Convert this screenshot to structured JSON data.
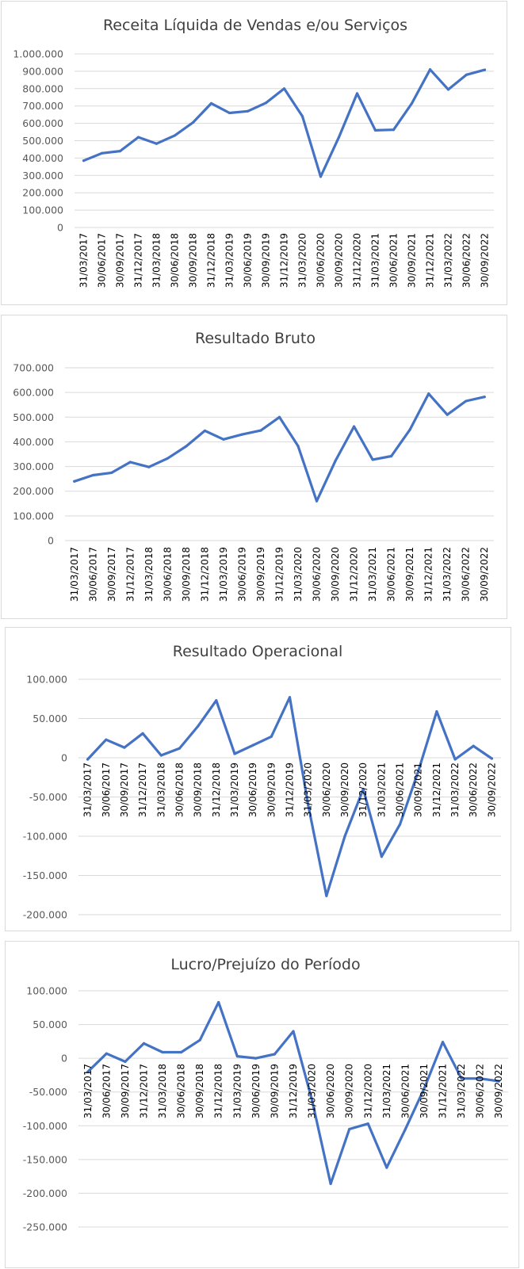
{
  "chart_data": [
    {
      "type": "line",
      "title": "Receita Líquida de Vendas e/ou Serviços",
      "categories": [
        "31/03/2017",
        "30/06/2017",
        "30/09/2017",
        "31/12/2017",
        "31/03/2018",
        "30/06/2018",
        "30/09/2018",
        "31/12/2018",
        "31/03/2019",
        "30/06/2019",
        "30/09/2019",
        "31/12/2019",
        "31/03/2020",
        "30/06/2020",
        "30/09/2020",
        "31/12/2020",
        "31/03/2021",
        "30/06/2021",
        "30/09/2021",
        "31/12/2021",
        "31/03/2022",
        "30/06/2022",
        "30/09/2022"
      ],
      "values": [
        385000,
        428000,
        440000,
        520000,
        483000,
        530000,
        605000,
        715000,
        660000,
        670000,
        718000,
        800000,
        640000,
        293000,
        520000,
        772000,
        560000,
        563000,
        715000,
        910000,
        795000,
        880000,
        908000
      ],
      "ylim": [
        0,
        1000000
      ],
      "yticks": [
        0,
        100000,
        200000,
        300000,
        400000,
        500000,
        600000,
        700000,
        800000,
        900000,
        1000000
      ],
      "ytick_labels": [
        "0",
        "100.000",
        "200.000",
        "300.000",
        "400.000",
        "500.000",
        "600.000",
        "700.000",
        "800.000",
        "900.000",
        "1.000.000"
      ],
      "grid": true,
      "color": "#4472C4"
    },
    {
      "type": "line",
      "title": "Resultado Bruto",
      "categories": [
        "31/03/2017",
        "30/06/2017",
        "30/09/2017",
        "31/12/2017",
        "31/03/2018",
        "30/06/2018",
        "30/09/2018",
        "31/12/2018",
        "31/03/2019",
        "30/06/2019",
        "30/09/2019",
        "31/12/2019",
        "31/03/2020",
        "30/06/2020",
        "30/09/2020",
        "31/12/2020",
        "31/03/2021",
        "30/06/2021",
        "30/09/2021",
        "31/12/2021",
        "31/03/2022",
        "30/06/2022",
        "30/09/2022"
      ],
      "values": [
        240000,
        265000,
        275000,
        318000,
        298000,
        333000,
        382000,
        445000,
        410000,
        430000,
        446000,
        500000,
        383000,
        160000,
        323000,
        462000,
        328000,
        342000,
        450000,
        595000,
        510000,
        565000,
        582000
      ],
      "ylim": [
        0,
        700000
      ],
      "yticks": [
        0,
        100000,
        200000,
        300000,
        400000,
        500000,
        600000,
        700000
      ],
      "ytick_labels": [
        "0",
        "100.000",
        "200.000",
        "300.000",
        "400.000",
        "500.000",
        "600.000",
        "700.000"
      ],
      "grid": true,
      "color": "#4472C4"
    },
    {
      "type": "line",
      "title": "Resultado Operacional",
      "categories": [
        "31/03/2017",
        "30/06/2017",
        "30/09/2017",
        "31/12/2017",
        "31/03/2018",
        "30/06/2018",
        "30/09/2018",
        "31/12/2018",
        "31/03/2019",
        "30/06/2019",
        "30/09/2019",
        "31/12/2019",
        "31/03/2020",
        "30/06/2020",
        "30/09/2020",
        "31/12/2020",
        "31/03/2021",
        "30/06/2021",
        "30/09/2021",
        "31/12/2021",
        "31/03/2022",
        "30/06/2022",
        "30/09/2022"
      ],
      "values": [
        -2000,
        23000,
        13000,
        31000,
        3000,
        12000,
        40000,
        73000,
        5000,
        16000,
        27000,
        77000,
        -60000,
        -176000,
        -100000,
        -40000,
        -126000,
        -85000,
        -17000,
        59000,
        -2000,
        15000,
        -1000
      ],
      "ylim": [
        -200000,
        100000
      ],
      "yticks": [
        -200000,
        -150000,
        -100000,
        -50000,
        0,
        50000,
        100000
      ],
      "ytick_labels": [
        "-200.000",
        "-150.000",
        "-100.000",
        "-50.000",
        "0",
        "50.000",
        "100.000"
      ],
      "grid": true,
      "color": "#4472C4"
    },
    {
      "type": "line",
      "title": "Lucro/Prejuízo do Período",
      "categories": [
        "31/03/2017",
        "30/06/2017",
        "30/09/2017",
        "31/12/2017",
        "31/03/2018",
        "30/06/2018",
        "30/09/2018",
        "31/12/2018",
        "31/03/2019",
        "30/06/2019",
        "30/09/2019",
        "31/12/2019",
        "31/03/2020",
        "30/06/2020",
        "30/09/2020",
        "31/12/2020",
        "31/03/2021",
        "30/06/2021",
        "30/09/2021",
        "31/12/2021",
        "31/03/2022",
        "30/06/2022",
        "30/09/2022"
      ],
      "values": [
        -20000,
        7000,
        -5000,
        22000,
        9000,
        9000,
        27000,
        83000,
        3000,
        0,
        6000,
        40000,
        -62000,
        -186000,
        -105000,
        -97000,
        -162000,
        -105000,
        -45000,
        24000,
        -30000,
        -30000,
        -34000
      ],
      "ylim": [
        -250000,
        100000
      ],
      "yticks": [
        -250000,
        -200000,
        -150000,
        -100000,
        -50000,
        0,
        50000,
        100000
      ],
      "ytick_labels": [
        "-250.000",
        "-200.000",
        "-150.000",
        "-100.000",
        "-50.000",
        "0",
        "50.000",
        "100.000"
      ],
      "grid": true,
      "color": "#4472C4"
    }
  ]
}
